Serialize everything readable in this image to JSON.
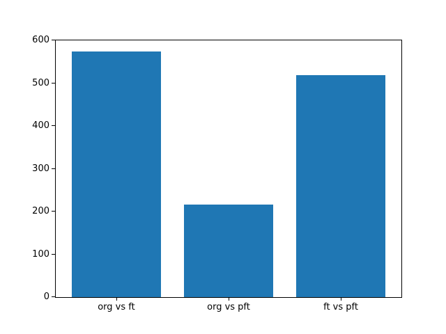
{
  "figure": {
    "background_color": "#ffffff",
    "bar_color": "#1f77b4",
    "spine_color": "#000000",
    "tick_text_color": "#000000"
  },
  "chart_data": {
    "type": "bar",
    "categories": [
      "org vs ft",
      "org vs pft",
      "ft vs pft"
    ],
    "values": [
      574,
      216,
      518
    ],
    "yticks": [
      0,
      100,
      200,
      300,
      400,
      500,
      600
    ],
    "ytick_labels": [
      "0",
      "100",
      "200",
      "300",
      "400",
      "500",
      "600"
    ],
    "ylim": [
      0,
      600
    ],
    "xlabel": "",
    "ylabel": "",
    "title": "",
    "grid": false,
    "legend": "none",
    "bar_width_fraction": 0.8,
    "x_margin": 0.05
  }
}
